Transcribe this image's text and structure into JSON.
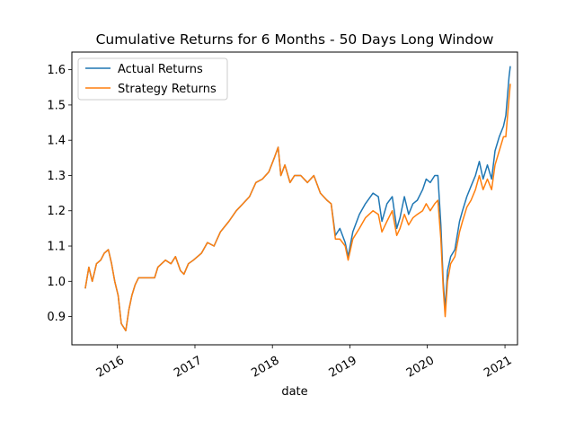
{
  "chart_data": {
    "type": "line",
    "title": "Cumulative Returns for 6 Months - 50 Days Long Window",
    "xlabel": "date",
    "ylabel": "",
    "xlim": [
      "2015-06-01",
      "2021-03-01"
    ],
    "ylim": [
      0.82,
      1.65
    ],
    "x_ticks": [
      "2016",
      "2017",
      "2018",
      "2019",
      "2020",
      "2021"
    ],
    "y_ticks": [
      "0.9",
      "1.0",
      "1.1",
      "1.2",
      "1.3",
      "1.4",
      "1.5",
      "1.6"
    ],
    "grid": false,
    "legend": "top-left",
    "series": [
      {
        "name": "Actual Returns",
        "color": "#1f77b4",
        "points": [
          [
            "2015-08-03",
            0.98
          ],
          [
            "2015-08-20",
            1.04
          ],
          [
            "2015-09-05",
            1.0
          ],
          [
            "2015-09-25",
            1.05
          ],
          [
            "2015-10-15",
            1.06
          ],
          [
            "2015-11-01",
            1.08
          ],
          [
            "2015-11-20",
            1.09
          ],
          [
            "2015-12-05",
            1.05
          ],
          [
            "2015-12-20",
            1.0
          ],
          [
            "2016-01-05",
            0.96
          ],
          [
            "2016-01-20",
            0.88
          ],
          [
            "2016-02-10",
            0.86
          ],
          [
            "2016-02-25",
            0.92
          ],
          [
            "2016-03-10",
            0.96
          ],
          [
            "2016-03-25",
            0.99
          ],
          [
            "2016-04-10",
            1.01
          ],
          [
            "2016-06-25",
            1.01
          ],
          [
            "2016-07-10",
            1.04
          ],
          [
            "2016-08-15",
            1.06
          ],
          [
            "2016-09-10",
            1.05
          ],
          [
            "2016-10-01",
            1.07
          ],
          [
            "2016-10-25",
            1.03
          ],
          [
            "2016-11-10",
            1.02
          ],
          [
            "2016-12-01",
            1.05
          ],
          [
            "2016-12-25",
            1.06
          ],
          [
            "2017-02-01",
            1.08
          ],
          [
            "2017-03-01",
            1.11
          ],
          [
            "2017-04-01",
            1.1
          ],
          [
            "2017-05-01",
            1.14
          ],
          [
            "2017-06-10",
            1.17
          ],
          [
            "2017-07-15",
            1.2
          ],
          [
            "2017-08-15",
            1.22
          ],
          [
            "2017-09-15",
            1.24
          ],
          [
            "2017-10-15",
            1.28
          ],
          [
            "2017-11-15",
            1.29
          ],
          [
            "2017-12-15",
            1.31
          ],
          [
            "2018-01-10",
            1.35
          ],
          [
            "2018-01-28",
            1.38
          ],
          [
            "2018-02-10",
            1.3
          ],
          [
            "2018-03-01",
            1.33
          ],
          [
            "2018-03-25",
            1.28
          ],
          [
            "2018-04-15",
            1.3
          ],
          [
            "2018-05-15",
            1.3
          ],
          [
            "2018-06-15",
            1.28
          ],
          [
            "2018-07-15",
            1.3
          ],
          [
            "2018-08-15",
            1.25
          ],
          [
            "2018-09-15",
            1.23
          ],
          [
            "2018-10-05",
            1.22
          ],
          [
            "2018-10-25",
            1.13
          ],
          [
            "2018-11-15",
            1.15
          ],
          [
            "2018-12-10",
            1.11
          ],
          [
            "2018-12-24",
            1.07
          ],
          [
            "2019-01-15",
            1.14
          ],
          [
            "2019-02-15",
            1.19
          ],
          [
            "2019-03-15",
            1.22
          ],
          [
            "2019-04-20",
            1.25
          ],
          [
            "2019-05-15",
            1.24
          ],
          [
            "2019-06-01",
            1.17
          ],
          [
            "2019-06-25",
            1.22
          ],
          [
            "2019-07-20",
            1.24
          ],
          [
            "2019-08-10",
            1.15
          ],
          [
            "2019-08-25",
            1.18
          ],
          [
            "2019-09-15",
            1.24
          ],
          [
            "2019-10-05",
            1.19
          ],
          [
            "2019-10-25",
            1.22
          ],
          [
            "2019-11-15",
            1.23
          ],
          [
            "2019-12-10",
            1.26
          ],
          [
            "2019-12-27",
            1.29
          ],
          [
            "2020-01-15",
            1.28
          ],
          [
            "2020-02-05",
            1.3
          ],
          [
            "2020-02-20",
            1.3
          ],
          [
            "2020-03-05",
            1.16
          ],
          [
            "2020-03-16",
            1.0
          ],
          [
            "2020-03-25",
            0.92
          ],
          [
            "2020-04-05",
            1.03
          ],
          [
            "2020-04-20",
            1.07
          ],
          [
            "2020-05-10",
            1.09
          ],
          [
            "2020-06-01",
            1.17
          ],
          [
            "2020-06-15",
            1.2
          ],
          [
            "2020-07-05",
            1.24
          ],
          [
            "2020-07-25",
            1.27
          ],
          [
            "2020-08-15",
            1.3
          ],
          [
            "2020-09-02",
            1.34
          ],
          [
            "2020-09-20",
            1.29
          ],
          [
            "2020-10-10",
            1.33
          ],
          [
            "2020-10-30",
            1.29
          ],
          [
            "2020-11-15",
            1.37
          ],
          [
            "2020-12-05",
            1.41
          ],
          [
            "2020-12-25",
            1.44
          ],
          [
            "2021-01-05",
            1.47
          ],
          [
            "2021-01-20",
            1.58
          ],
          [
            "2021-01-26",
            1.61
          ]
        ]
      },
      {
        "name": "Strategy Returns",
        "color": "#ff7f0e",
        "points": [
          [
            "2015-08-03",
            0.98
          ],
          [
            "2015-08-20",
            1.04
          ],
          [
            "2015-09-05",
            1.0
          ],
          [
            "2015-09-25",
            1.05
          ],
          [
            "2015-10-15",
            1.06
          ],
          [
            "2015-11-01",
            1.08
          ],
          [
            "2015-11-20",
            1.09
          ],
          [
            "2015-12-05",
            1.05
          ],
          [
            "2015-12-20",
            1.0
          ],
          [
            "2016-01-05",
            0.96
          ],
          [
            "2016-01-20",
            0.88
          ],
          [
            "2016-02-10",
            0.86
          ],
          [
            "2016-02-25",
            0.92
          ],
          [
            "2016-03-10",
            0.96
          ],
          [
            "2016-03-25",
            0.99
          ],
          [
            "2016-04-10",
            1.01
          ],
          [
            "2016-06-25",
            1.01
          ],
          [
            "2016-07-10",
            1.04
          ],
          [
            "2016-08-15",
            1.06
          ],
          [
            "2016-09-10",
            1.05
          ],
          [
            "2016-10-01",
            1.07
          ],
          [
            "2016-10-25",
            1.03
          ],
          [
            "2016-11-10",
            1.02
          ],
          [
            "2016-12-01",
            1.05
          ],
          [
            "2016-12-25",
            1.06
          ],
          [
            "2017-02-01",
            1.08
          ],
          [
            "2017-03-01",
            1.11
          ],
          [
            "2017-04-01",
            1.1
          ],
          [
            "2017-05-01",
            1.14
          ],
          [
            "2017-06-10",
            1.17
          ],
          [
            "2017-07-15",
            1.2
          ],
          [
            "2017-08-15",
            1.22
          ],
          [
            "2017-09-15",
            1.24
          ],
          [
            "2017-10-15",
            1.28
          ],
          [
            "2017-11-15",
            1.29
          ],
          [
            "2017-12-15",
            1.31
          ],
          [
            "2018-01-10",
            1.35
          ],
          [
            "2018-01-28",
            1.38
          ],
          [
            "2018-02-10",
            1.3
          ],
          [
            "2018-03-01",
            1.33
          ],
          [
            "2018-03-25",
            1.28
          ],
          [
            "2018-04-15",
            1.3
          ],
          [
            "2018-05-15",
            1.3
          ],
          [
            "2018-06-15",
            1.28
          ],
          [
            "2018-07-15",
            1.3
          ],
          [
            "2018-08-15",
            1.25
          ],
          [
            "2018-09-15",
            1.23
          ],
          [
            "2018-10-05",
            1.22
          ],
          [
            "2018-10-25",
            1.12
          ],
          [
            "2018-11-15",
            1.12
          ],
          [
            "2018-12-10",
            1.1
          ],
          [
            "2018-12-24",
            1.06
          ],
          [
            "2019-01-15",
            1.12
          ],
          [
            "2019-02-15",
            1.15
          ],
          [
            "2019-03-15",
            1.18
          ],
          [
            "2019-04-20",
            1.2
          ],
          [
            "2019-05-15",
            1.19
          ],
          [
            "2019-06-01",
            1.14
          ],
          [
            "2019-06-25",
            1.17
          ],
          [
            "2019-07-20",
            1.2
          ],
          [
            "2019-08-10",
            1.13
          ],
          [
            "2019-08-25",
            1.15
          ],
          [
            "2019-09-15",
            1.19
          ],
          [
            "2019-10-05",
            1.16
          ],
          [
            "2019-10-25",
            1.18
          ],
          [
            "2019-11-15",
            1.19
          ],
          [
            "2019-12-10",
            1.2
          ],
          [
            "2019-12-27",
            1.22
          ],
          [
            "2020-01-15",
            1.2
          ],
          [
            "2020-02-05",
            1.22
          ],
          [
            "2020-02-20",
            1.23
          ],
          [
            "2020-03-05",
            1.12
          ],
          [
            "2020-03-16",
            0.98
          ],
          [
            "2020-03-25",
            0.9
          ],
          [
            "2020-04-05",
            1.0
          ],
          [
            "2020-04-20",
            1.05
          ],
          [
            "2020-05-10",
            1.07
          ],
          [
            "2020-06-01",
            1.14
          ],
          [
            "2020-06-15",
            1.17
          ],
          [
            "2020-07-05",
            1.21
          ],
          [
            "2020-07-25",
            1.23
          ],
          [
            "2020-08-15",
            1.26
          ],
          [
            "2020-09-02",
            1.3
          ],
          [
            "2020-09-20",
            1.26
          ],
          [
            "2020-10-10",
            1.29
          ],
          [
            "2020-10-30",
            1.26
          ],
          [
            "2020-11-15",
            1.33
          ],
          [
            "2020-12-05",
            1.37
          ],
          [
            "2020-12-25",
            1.41
          ],
          [
            "2021-01-05",
            1.41
          ],
          [
            "2021-01-20",
            1.52
          ],
          [
            "2021-01-26",
            1.56
          ]
        ]
      }
    ]
  }
}
